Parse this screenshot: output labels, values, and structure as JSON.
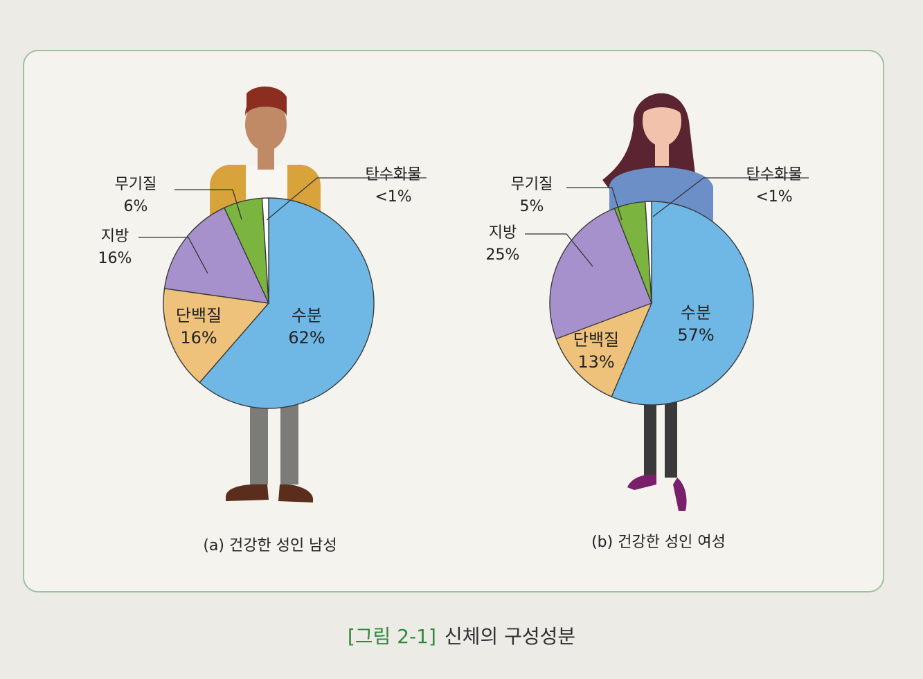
{
  "caption": {
    "number": "[그림 2-1]",
    "title": "신체의 구성성분"
  },
  "colors": {
    "water": "#6fb8e6",
    "protein": "#eec27a",
    "fat": "#a791cc",
    "mineral": "#7bb43f",
    "carbohydrate": "#ffffff",
    "frame": "#9dc29a",
    "caption_number": "#2e8a3a"
  },
  "chart_data": [
    {
      "type": "pie",
      "caption": "(a) 건강한 성인 남성",
      "slices": [
        {
          "label": "수분",
          "value": 62,
          "value_text": "62%",
          "color": "#6fb8e6"
        },
        {
          "label": "단백질",
          "value": 16,
          "value_text": "16%",
          "color": "#eec27a"
        },
        {
          "label": "지방",
          "value": 16,
          "value_text": "16%",
          "color": "#a791cc"
        },
        {
          "label": "무기질",
          "value": 6,
          "value_text": "6%",
          "color": "#7bb43f"
        },
        {
          "label": "탄수화물",
          "value": 1,
          "value_text": "<1%",
          "color": "#ffffff"
        }
      ]
    },
    {
      "type": "pie",
      "caption": "(b) 건강한 성인 여성",
      "slices": [
        {
          "label": "수분",
          "value": 57,
          "value_text": "57%",
          "color": "#6fb8e6"
        },
        {
          "label": "단백질",
          "value": 13,
          "value_text": "13%",
          "color": "#eec27a"
        },
        {
          "label": "지방",
          "value": 25,
          "value_text": "25%",
          "color": "#a791cc"
        },
        {
          "label": "무기질",
          "value": 5,
          "value_text": "5%",
          "color": "#7bb43f"
        },
        {
          "label": "탄수화물",
          "value": 1,
          "value_text": "<1%",
          "color": "#ffffff"
        }
      ]
    }
  ]
}
